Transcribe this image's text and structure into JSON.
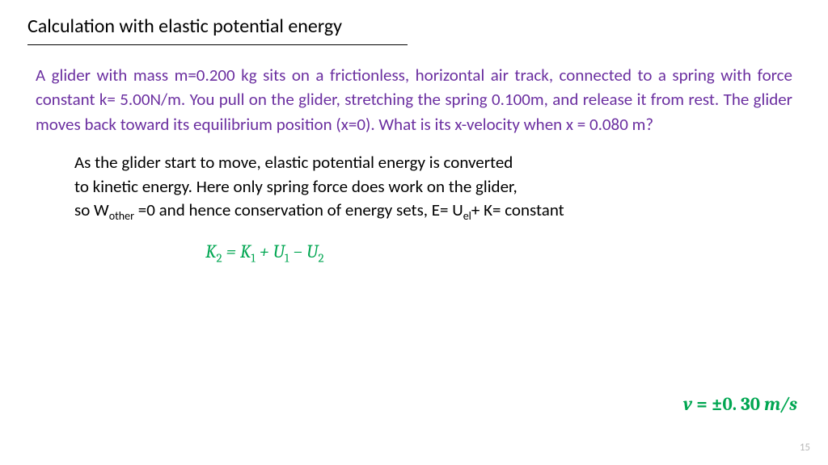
{
  "title": "Calculation with elastic potential energy",
  "problem": "A glider with mass m=0.200 kg sits on a frictionless, horizontal air track, connected to a spring with force constant k= 5.00N/m. You pull on the glider, stretching the spring 0.100m, and release it from rest. The glider moves back toward its equilibrium position (x=0). What is its x-velocity when x = 0.080 m?",
  "explain_l1": "As the glider start to move, elastic potential energy is converted",
  "explain_l2": "to kinetic energy. Here only spring force does work on the glider,",
  "explain_l3a": "so W",
  "explain_l3b": "other",
  "explain_l3c": " =0 and hence conservation of energy sets, E= U",
  "explain_l3d": "el",
  "explain_l3e": "+ K= constant",
  "formula_K": "K",
  "formula_2": "2",
  "formula_eq": " = ",
  "formula_1": "1",
  "formula_plus": " + ",
  "formula_U": "U",
  "formula_minus": " − ",
  "ans_v": "v",
  "ans_eq": " = ±",
  "ans_val": "0. 30 ",
  "ans_unit": "m/s",
  "page": "15",
  "colors": {
    "title": "#000000",
    "problem": "#6b2fa0",
    "formula": "#00a651",
    "pagenum": "#b8b8b8",
    "bg": "#ffffff"
  },
  "fontsizes": {
    "title": 24,
    "body": 21,
    "formula": 23,
    "pagenum": 13
  }
}
